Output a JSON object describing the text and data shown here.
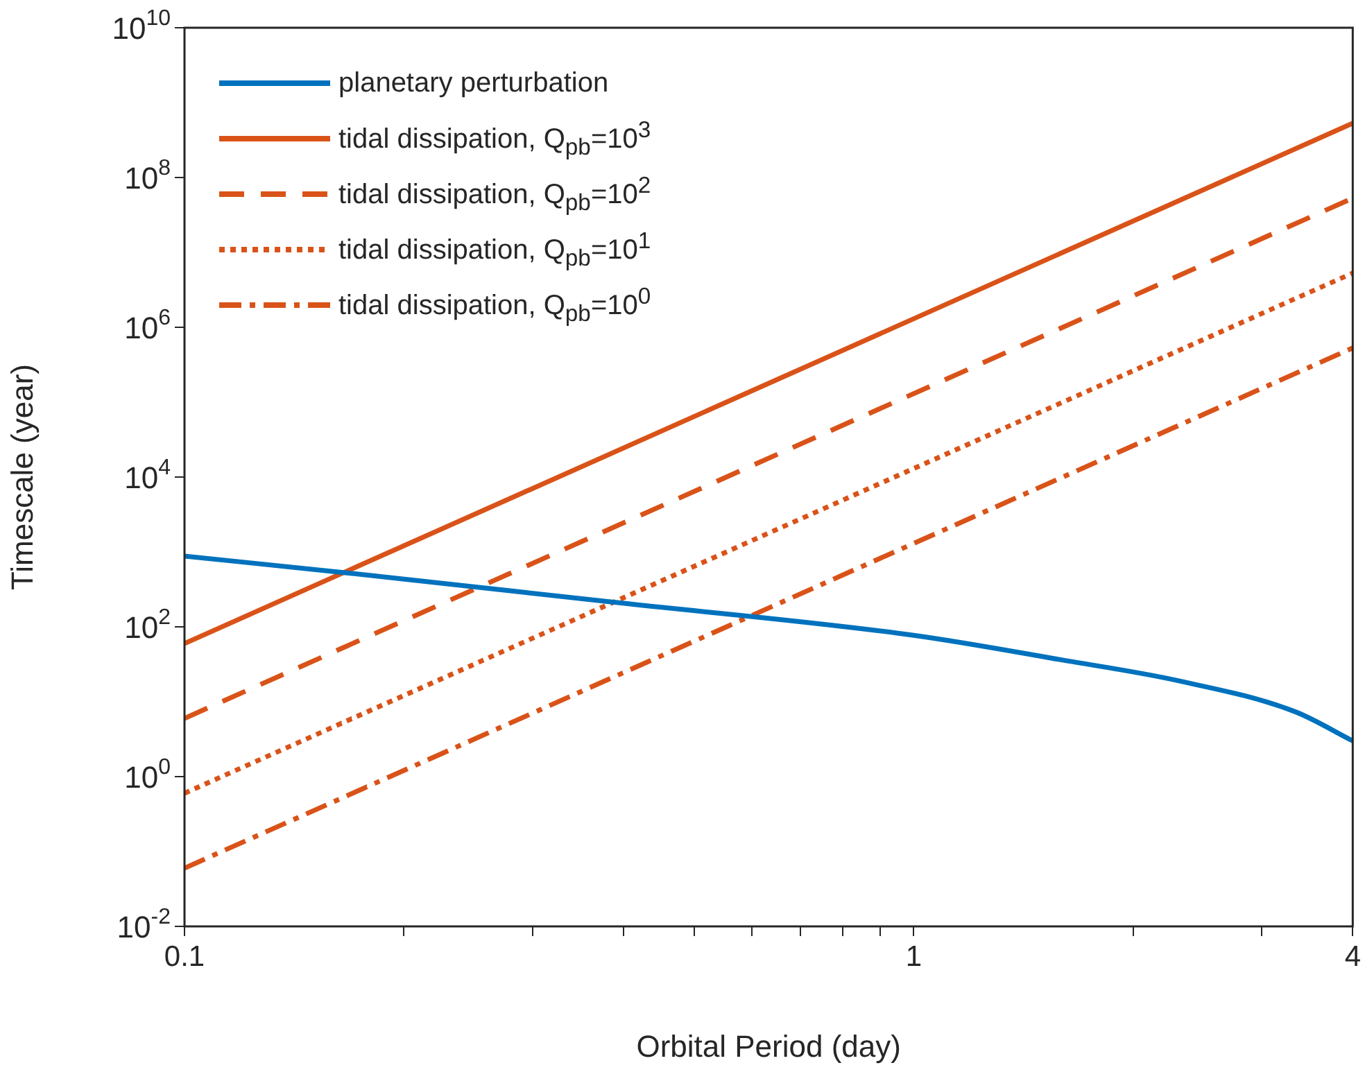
{
  "chart_data": {
    "type": "line",
    "xlabel": "Orbital Period (day)",
    "ylabel": "Timescale (year)",
    "log": "xy",
    "grid": false,
    "legend": "top left",
    "marker": "none",
    "xlim": [
      0.1,
      4
    ],
    "ylim": [
      0.01,
      10000000000
    ],
    "xticks": [
      0.1,
      {
        "value": 0.2,
        "label": null
      },
      {
        "value": 0.3,
        "label": null
      },
      {
        "value": 0.4,
        "label": null
      },
      {
        "value": 0.5,
        "label": null
      },
      {
        "value": 0.6,
        "label": null
      },
      {
        "value": 0.7,
        "label": null
      },
      {
        "value": 0.8,
        "label": null
      },
      {
        "value": 0.9,
        "label": null
      },
      1,
      {
        "value": 2,
        "label": null
      },
      {
        "value": 3,
        "label": null
      },
      4
    ],
    "yticks": [
      {
        "value": 0.01,
        "label": "10$^{-2}$"
      },
      {
        "value": 1,
        "label": "10$^{0}$"
      },
      {
        "value": 100,
        "label": "10$^{2}$"
      },
      {
        "value": 10000,
        "label": "10$^{4}$"
      },
      {
        "value": 1000000,
        "label": "10$^{6}$"
      },
      {
        "value": 100000000,
        "label": "10$^{8}$"
      },
      {
        "value": 10000000000,
        "label": "10$^{10}$"
      }
    ],
    "series": [
      {
        "name": "planetary perturbation",
        "color": "#0072bd",
        "line_style": "solid",
        "x": [
          0.1,
          0.167,
          0.384,
          1,
          1.6,
          2.31,
          3.33,
          4
        ],
        "values": [
          880,
          525,
          215,
          77,
          36,
          19,
          7.4,
          3.0
        ]
      },
      {
        "name": "tidal dissipation, Q$_{pb}$=10$^{3}$",
        "color": "#d95319",
        "line_style": "solid",
        "x": [
          0.1,
          4
        ],
        "values": [
          60,
          530000000
        ]
      },
      {
        "name": "tidal dissipation, Q$_{pb}$=10$^{2}$",
        "color": "#d95319",
        "line_style": "dashed",
        "x": [
          0.1,
          4
        ],
        "values": [
          6,
          53000000
        ]
      },
      {
        "name": "tidal dissipation, Q$_{pb}$=10$^{1}$",
        "color": "#d95319",
        "line_style": "dotted",
        "x": [
          0.1,
          4
        ],
        "values": [
          0.6,
          5300000
        ]
      },
      {
        "name": "tidal dissipation, Q$_{pb}$=10$^{0}$",
        "color": "#d95319",
        "line_style": "dashdot",
        "x": [
          0.1,
          4
        ],
        "values": [
          0.06,
          530000
        ]
      }
    ]
  }
}
